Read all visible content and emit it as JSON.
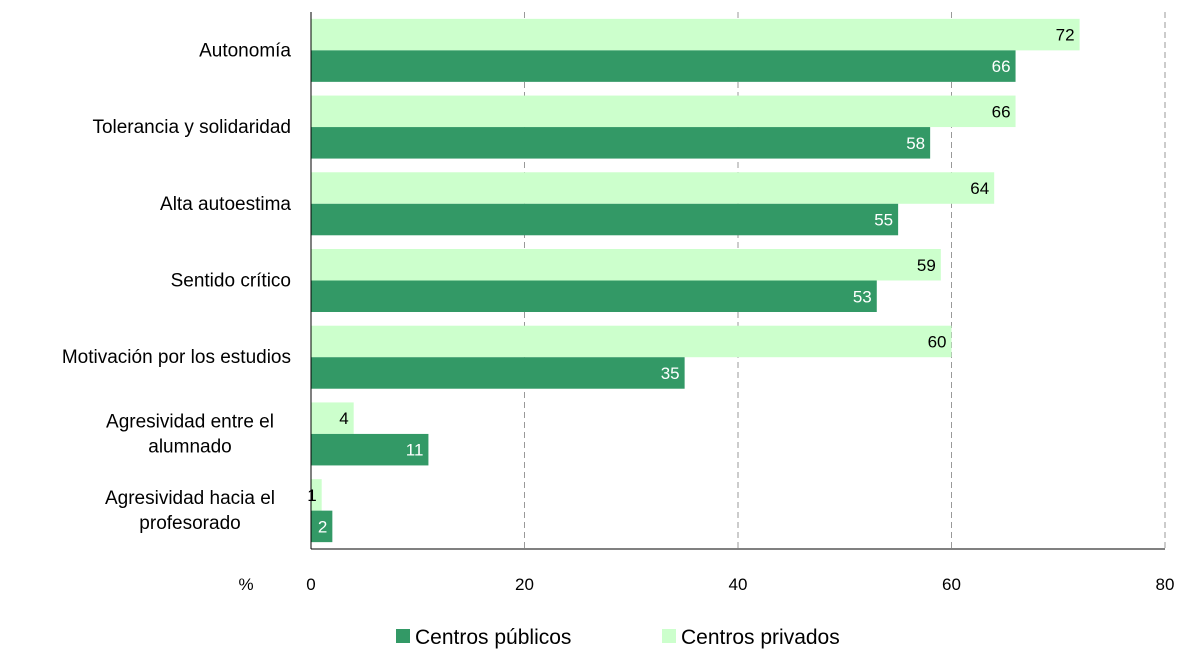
{
  "chart_data": {
    "type": "bar",
    "orientation": "horizontal",
    "categories": [
      [
        "Autonomía"
      ],
      [
        "Tolerancia y solidaridad"
      ],
      [
        "Alta autoestima"
      ],
      [
        "Sentido crítico"
      ],
      [
        "Motivación por los estudios"
      ],
      [
        "Agresividad entre el",
        "alumnado"
      ],
      [
        "Agresividad hacia el",
        "profesorado"
      ]
    ],
    "series": [
      {
        "name": "Centros públicos",
        "color": "#339966",
        "label_color": "#ffffff",
        "values": [
          66,
          58,
          55,
          53,
          35,
          11,
          2
        ]
      },
      {
        "name": "Centros privados",
        "color": "#ccffcc",
        "label_color": "#000000",
        "values": [
          72,
          66,
          64,
          59,
          60,
          4,
          1
        ]
      }
    ],
    "xlim": [
      0,
      80
    ],
    "xticks": [
      0,
      20,
      40,
      60,
      80
    ],
    "xlabel": "%",
    "grid": "vertical-dashed",
    "legend_placement": "bottom"
  }
}
